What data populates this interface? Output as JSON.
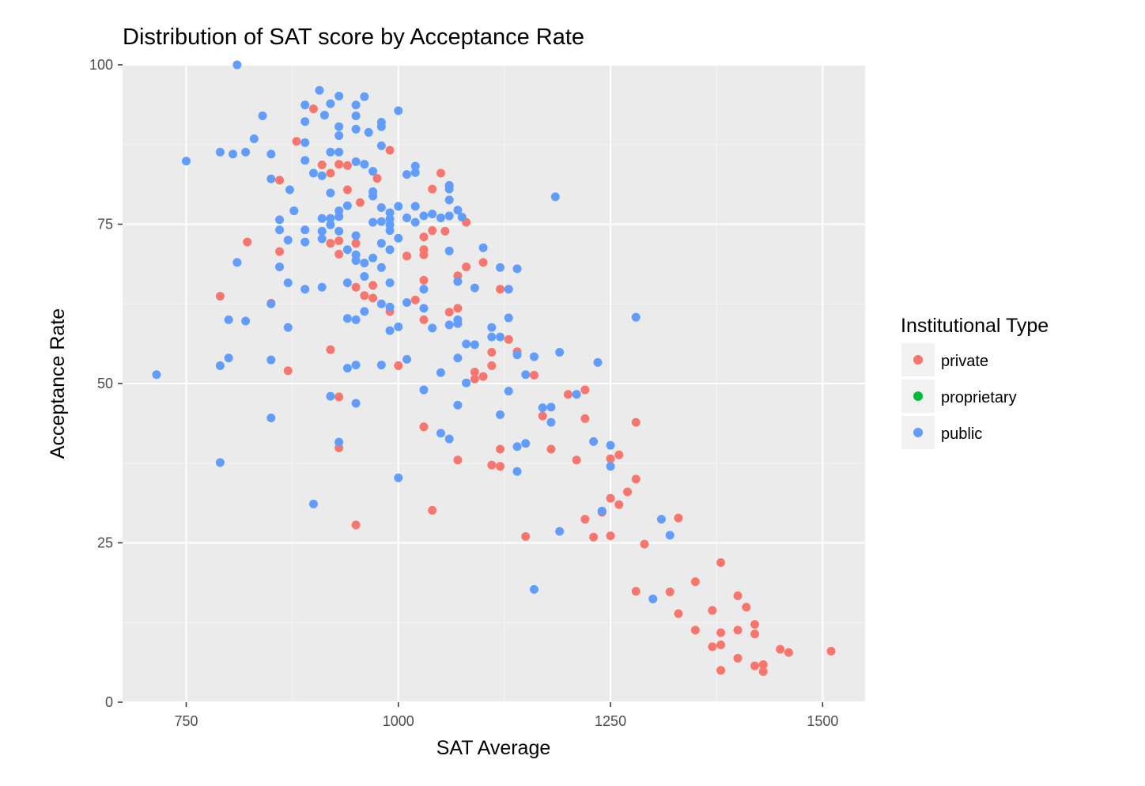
{
  "chart_data": {
    "type": "scatter",
    "title": "Distribution of SAT score by Acceptance Rate",
    "xlabel": "SAT Average",
    "ylabel": "Acceptance Rate",
    "xlim": [
      675,
      1550
    ],
    "ylim": [
      0,
      100
    ],
    "x_ticks": [
      750,
      1000,
      1250,
      1500
    ],
    "y_ticks": [
      0,
      25,
      50,
      75,
      100
    ],
    "x_tick_labels": [
      "750",
      "1000",
      "1250",
      "1500"
    ],
    "y_tick_labels": [
      "0",
      "25",
      "50",
      "75",
      "100"
    ],
    "grid": true,
    "legend_position": "right",
    "legend": {
      "title": "Institutional Type",
      "entries": [
        {
          "label": "private",
          "color": "#F8766D"
        },
        {
          "label": "proprietary",
          "color": "#00BA38"
        },
        {
          "label": "public",
          "color": "#619CFF"
        }
      ]
    },
    "series": [
      {
        "name": "private",
        "color": "#F8766D",
        "points": [
          [
            790,
            63.7
          ],
          [
            822,
            72.2
          ],
          [
            850,
            62.6
          ],
          [
            860,
            81.9
          ],
          [
            860,
            70.7
          ],
          [
            870,
            52.0
          ],
          [
            880,
            88.0
          ],
          [
            900,
            93.1
          ],
          [
            910,
            84.3
          ],
          [
            920,
            83.0
          ],
          [
            920,
            72.0
          ],
          [
            920,
            55.3
          ],
          [
            930,
            84.4
          ],
          [
            930,
            72.4
          ],
          [
            930,
            70.3
          ],
          [
            930,
            47.9
          ],
          [
            930,
            39.9
          ],
          [
            940,
            84.2
          ],
          [
            940,
            80.4
          ],
          [
            950,
            72.0
          ],
          [
            950,
            65.1
          ],
          [
            950,
            27.8
          ],
          [
            955,
            78.4
          ],
          [
            960,
            63.8
          ],
          [
            970,
            65.4
          ],
          [
            970,
            63.4
          ],
          [
            975,
            82.2
          ],
          [
            990,
            86.6
          ],
          [
            990,
            61.3
          ],
          [
            1000,
            52.8
          ],
          [
            1010,
            70.0
          ],
          [
            1020,
            63.1
          ],
          [
            1030,
            73.0
          ],
          [
            1030,
            71.0
          ],
          [
            1030,
            70.2
          ],
          [
            1030,
            66.2
          ],
          [
            1030,
            60.0
          ],
          [
            1030,
            43.2
          ],
          [
            1040,
            80.5
          ],
          [
            1040,
            74.0
          ],
          [
            1040,
            30.1
          ],
          [
            1050,
            83.0
          ],
          [
            1055,
            73.9
          ],
          [
            1060,
            61.2
          ],
          [
            1070,
            66.9
          ],
          [
            1070,
            61.8
          ],
          [
            1070,
            38.0
          ],
          [
            1080,
            75.3
          ],
          [
            1080,
            68.3
          ],
          [
            1090,
            51.8
          ],
          [
            1090,
            50.7
          ],
          [
            1100,
            69.0
          ],
          [
            1100,
            51.1
          ],
          [
            1110,
            54.9
          ],
          [
            1110,
            52.8
          ],
          [
            1110,
            37.2
          ],
          [
            1120,
            64.8
          ],
          [
            1120,
            39.7
          ],
          [
            1120,
            37.0
          ],
          [
            1130,
            56.9
          ],
          [
            1140,
            55.0
          ],
          [
            1150,
            26.0
          ],
          [
            1160,
            51.3
          ],
          [
            1170,
            44.9
          ],
          [
            1180,
            39.7
          ],
          [
            1200,
            48.3
          ],
          [
            1210,
            38.0
          ],
          [
            1220,
            49.0
          ],
          [
            1220,
            44.5
          ],
          [
            1220,
            28.7
          ],
          [
            1230,
            25.9
          ],
          [
            1240,
            29.8
          ],
          [
            1250,
            38.2
          ],
          [
            1250,
            32.0
          ],
          [
            1250,
            26.1
          ],
          [
            1260,
            38.8
          ],
          [
            1260,
            31.0
          ],
          [
            1270,
            33.0
          ],
          [
            1280,
            43.9
          ],
          [
            1280,
            35.0
          ],
          [
            1280,
            17.4
          ],
          [
            1290,
            24.8
          ],
          [
            1320,
            17.3
          ],
          [
            1330,
            28.9
          ],
          [
            1330,
            13.9
          ],
          [
            1350,
            18.9
          ],
          [
            1350,
            11.3
          ],
          [
            1370,
            14.4
          ],
          [
            1370,
            8.7
          ],
          [
            1380,
            21.9
          ],
          [
            1380,
            10.9
          ],
          [
            1380,
            9.0
          ],
          [
            1380,
            5.0
          ],
          [
            1400,
            16.7
          ],
          [
            1400,
            11.3
          ],
          [
            1400,
            6.9
          ],
          [
            1410,
            14.9
          ],
          [
            1420,
            12.2
          ],
          [
            1420,
            10.7
          ],
          [
            1420,
            5.7
          ],
          [
            1430,
            5.9
          ],
          [
            1430,
            4.8
          ],
          [
            1450,
            8.3
          ],
          [
            1460,
            7.8
          ],
          [
            1510,
            8.0
          ]
        ]
      },
      {
        "name": "proprietary",
        "color": "#00BA38",
        "points": []
      },
      {
        "name": "public",
        "color": "#619CFF",
        "points": [
          [
            715,
            51.4
          ],
          [
            750,
            84.9
          ],
          [
            790,
            86.3
          ],
          [
            790,
            52.8
          ],
          [
            790,
            37.6
          ],
          [
            800,
            60.0
          ],
          [
            800,
            54.0
          ],
          [
            805,
            86.0
          ],
          [
            810,
            100.0
          ],
          [
            810,
            69.0
          ],
          [
            820,
            86.3
          ],
          [
            820,
            59.8
          ],
          [
            830,
            88.4
          ],
          [
            840,
            92.0
          ],
          [
            850,
            86.0
          ],
          [
            850,
            82.1
          ],
          [
            850,
            62.5
          ],
          [
            850,
            53.7
          ],
          [
            850,
            44.6
          ],
          [
            860,
            75.7
          ],
          [
            860,
            74.1
          ],
          [
            860,
            68.3
          ],
          [
            870,
            72.5
          ],
          [
            870,
            65.8
          ],
          [
            870,
            58.8
          ],
          [
            872,
            80.4
          ],
          [
            877,
            77.1
          ],
          [
            890,
            93.7
          ],
          [
            890,
            91.1
          ],
          [
            890,
            87.8
          ],
          [
            890,
            85.0
          ],
          [
            890,
            74.1
          ],
          [
            890,
            72.2
          ],
          [
            890,
            64.8
          ],
          [
            900,
            83.0
          ],
          [
            900,
            31.1
          ],
          [
            907,
            96.0
          ],
          [
            910,
            82.6
          ],
          [
            910,
            75.9
          ],
          [
            910,
            73.9
          ],
          [
            910,
            72.7
          ],
          [
            910,
            65.1
          ],
          [
            913,
            92.1
          ],
          [
            920,
            93.9
          ],
          [
            920,
            86.3
          ],
          [
            920,
            79.9
          ],
          [
            920,
            75.9
          ],
          [
            920,
            74.9
          ],
          [
            920,
            48.0
          ],
          [
            930,
            95.1
          ],
          [
            930,
            90.3
          ],
          [
            930,
            88.9
          ],
          [
            930,
            86.3
          ],
          [
            930,
            77.1
          ],
          [
            930,
            76.2
          ],
          [
            930,
            73.9
          ],
          [
            930,
            40.8
          ],
          [
            940,
            77.9
          ],
          [
            940,
            71.0
          ],
          [
            940,
            65.8
          ],
          [
            940,
            60.2
          ],
          [
            940,
            52.4
          ],
          [
            950,
            93.7
          ],
          [
            950,
            92.0
          ],
          [
            950,
            89.9
          ],
          [
            950,
            84.8
          ],
          [
            950,
            73.2
          ],
          [
            950,
            70.2
          ],
          [
            950,
            69.3
          ],
          [
            950,
            60.0
          ],
          [
            950,
            52.9
          ],
          [
            950,
            46.9
          ],
          [
            960,
            95.0
          ],
          [
            960,
            84.4
          ],
          [
            960,
            68.9
          ],
          [
            960,
            66.8
          ],
          [
            960,
            61.3
          ],
          [
            965,
            89.4
          ],
          [
            970,
            83.3
          ],
          [
            970,
            80.1
          ],
          [
            970,
            79.4
          ],
          [
            970,
            75.3
          ],
          [
            970,
            69.7
          ],
          [
            980,
            91.0
          ],
          [
            980,
            90.3
          ],
          [
            980,
            87.3
          ],
          [
            980,
            77.6
          ],
          [
            980,
            75.4
          ],
          [
            980,
            72.0
          ],
          [
            980,
            68.2
          ],
          [
            980,
            62.5
          ],
          [
            980,
            52.9
          ],
          [
            990,
            76.8
          ],
          [
            990,
            75.8
          ],
          [
            990,
            74.9
          ],
          [
            990,
            74.0
          ],
          [
            990,
            71.0
          ],
          [
            990,
            65.8
          ],
          [
            990,
            62.0
          ],
          [
            990,
            58.3
          ],
          [
            1000,
            92.8
          ],
          [
            1000,
            77.8
          ],
          [
            1000,
            72.8
          ],
          [
            1000,
            58.9
          ],
          [
            1000,
            35.2
          ],
          [
            1010,
            82.8
          ],
          [
            1010,
            76.0
          ],
          [
            1010,
            62.7
          ],
          [
            1010,
            53.8
          ],
          [
            1020,
            84.1
          ],
          [
            1020,
            83.1
          ],
          [
            1020,
            77.8
          ],
          [
            1020,
            75.3
          ],
          [
            1030,
            76.3
          ],
          [
            1030,
            64.8
          ],
          [
            1030,
            61.8
          ],
          [
            1030,
            49.0
          ],
          [
            1040,
            76.6
          ],
          [
            1040,
            58.7
          ],
          [
            1050,
            76.0
          ],
          [
            1050,
            51.7
          ],
          [
            1050,
            42.2
          ],
          [
            1060,
            81.1
          ],
          [
            1060,
            80.5
          ],
          [
            1060,
            78.8
          ],
          [
            1060,
            76.3
          ],
          [
            1060,
            70.8
          ],
          [
            1060,
            59.2
          ],
          [
            1060,
            41.3
          ],
          [
            1070,
            77.2
          ],
          [
            1070,
            66.0
          ],
          [
            1070,
            60.0
          ],
          [
            1070,
            59.4
          ],
          [
            1070,
            54.0
          ],
          [
            1070,
            46.6
          ],
          [
            1075,
            76.1
          ],
          [
            1080,
            56.2
          ],
          [
            1080,
            50.1
          ],
          [
            1090,
            65.0
          ],
          [
            1090,
            56.1
          ],
          [
            1100,
            71.3
          ],
          [
            1110,
            58.8
          ],
          [
            1110,
            57.3
          ],
          [
            1120,
            68.2
          ],
          [
            1120,
            57.3
          ],
          [
            1120,
            45.1
          ],
          [
            1130,
            64.8
          ],
          [
            1130,
            60.3
          ],
          [
            1130,
            48.8
          ],
          [
            1140,
            68.0
          ],
          [
            1140,
            54.5
          ],
          [
            1140,
            40.1
          ],
          [
            1140,
            36.2
          ],
          [
            1150,
            51.4
          ],
          [
            1150,
            40.6
          ],
          [
            1160,
            54.2
          ],
          [
            1160,
            17.7
          ],
          [
            1170,
            46.2
          ],
          [
            1180,
            46.3
          ],
          [
            1180,
            43.9
          ],
          [
            1185,
            79.3
          ],
          [
            1190,
            54.9
          ],
          [
            1190,
            26.8
          ],
          [
            1210,
            48.3
          ],
          [
            1230,
            40.9
          ],
          [
            1235,
            53.3
          ],
          [
            1240,
            30.0
          ],
          [
            1250,
            40.3
          ],
          [
            1250,
            37.0
          ],
          [
            1280,
            60.4
          ],
          [
            1300,
            16.2
          ],
          [
            1310,
            28.7
          ],
          [
            1320,
            26.2
          ]
        ]
      }
    ]
  }
}
